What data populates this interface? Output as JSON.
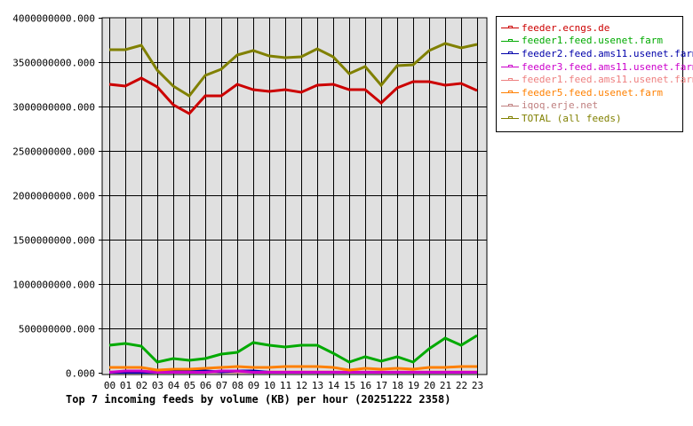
{
  "chart_data": {
    "type": "line",
    "title": "Top 7 incoming feeds by volume (KB) per hour (20251222 2358)",
    "xlabel": "",
    "ylabel": "",
    "ylim": [
      0,
      4000000000
    ],
    "yticks": [
      "0.000",
      "500000000.000",
      "1000000000.000",
      "1500000000.000",
      "2000000000.000",
      "2500000000.000",
      "3000000000.000",
      "3500000000.000",
      "4000000000.000"
    ],
    "categories": [
      "00",
      "01",
      "02",
      "03",
      "04",
      "05",
      "06",
      "07",
      "08",
      "09",
      "10",
      "11",
      "12",
      "13",
      "14",
      "15",
      "16",
      "17",
      "18",
      "19",
      "20",
      "21",
      "22",
      "23"
    ],
    "grid": true,
    "legend_position": "right",
    "series": [
      {
        "name": "feeder.ecngs.de",
        "color": "#cc0000",
        "values": [
          3250000000,
          3230000000,
          3320000000,
          3220000000,
          3020000000,
          2920000000,
          3120000000,
          3120000000,
          3250000000,
          3190000000,
          3170000000,
          3190000000,
          3160000000,
          3240000000,
          3250000000,
          3190000000,
          3190000000,
          3040000000,
          3210000000,
          3280000000,
          3280000000,
          3240000000,
          3260000000,
          3180000000
        ]
      },
      {
        "name": "feeder1.feed.usenet.farm",
        "color": "#00aa00",
        "values": [
          310000000,
          330000000,
          300000000,
          120000000,
          160000000,
          140000000,
          160000000,
          210000000,
          230000000,
          340000000,
          310000000,
          290000000,
          310000000,
          310000000,
          220000000,
          120000000,
          180000000,
          130000000,
          180000000,
          120000000,
          270000000,
          390000000,
          310000000,
          420000000
        ]
      },
      {
        "name": "feeder2.feed.ams11.usenet.farm",
        "color": "#0000aa",
        "values": [
          5000000,
          5000000,
          5000000,
          5000000,
          10000000,
          20000000,
          20000000,
          10000000,
          20000000,
          20000000,
          5000000,
          5000000,
          5000000,
          5000000,
          5000000,
          5000000,
          5000000,
          5000000,
          5000000,
          5000000,
          5000000,
          5000000,
          5000000,
          5000000
        ]
      },
      {
        "name": "feeder3.feed.ams11.usenet.farm",
        "color": "#cc00cc",
        "values": [
          5000000,
          20000000,
          20000000,
          5000000,
          5000000,
          5000000,
          5000000,
          20000000,
          20000000,
          5000000,
          5000000,
          5000000,
          5000000,
          5000000,
          5000000,
          5000000,
          5000000,
          5000000,
          5000000,
          5000000,
          5000000,
          5000000,
          5000000,
          5000000
        ]
      },
      {
        "name": "feeder1.feed.ams11.usenet.farm",
        "color": "#ee8080",
        "values": [
          10000000,
          10000000,
          10000000,
          10000000,
          10000000,
          10000000,
          10000000,
          10000000,
          10000000,
          10000000,
          10000000,
          10000000,
          10000000,
          10000000,
          10000000,
          10000000,
          10000000,
          10000000,
          10000000,
          10000000,
          10000000,
          10000000,
          10000000,
          10000000
        ]
      },
      {
        "name": "feeder5.feed.usenet.farm",
        "color": "#ff8000",
        "values": [
          60000000,
          60000000,
          60000000,
          30000000,
          40000000,
          40000000,
          50000000,
          60000000,
          70000000,
          60000000,
          60000000,
          70000000,
          70000000,
          70000000,
          60000000,
          30000000,
          50000000,
          40000000,
          50000000,
          40000000,
          60000000,
          60000000,
          70000000,
          70000000
        ]
      },
      {
        "name": "iqoq.erje.net",
        "color": "#c08080",
        "values": [
          8000000,
          8000000,
          8000000,
          8000000,
          8000000,
          8000000,
          8000000,
          8000000,
          8000000,
          8000000,
          8000000,
          8000000,
          8000000,
          8000000,
          8000000,
          8000000,
          8000000,
          8000000,
          8000000,
          8000000,
          8000000,
          8000000,
          8000000,
          8000000
        ]
      },
      {
        "name": "TOTAL (all feeds)",
        "color": "#808000",
        "values": [
          3640000000,
          3640000000,
          3690000000,
          3410000000,
          3230000000,
          3120000000,
          3350000000,
          3420000000,
          3580000000,
          3630000000,
          3570000000,
          3550000000,
          3560000000,
          3650000000,
          3560000000,
          3370000000,
          3450000000,
          3240000000,
          3460000000,
          3470000000,
          3630000000,
          3710000000,
          3660000000,
          3700000000
        ]
      }
    ]
  },
  "chart": {
    "title": "Top 7 incoming feeds by volume (KB) per hour (20251222 2358)",
    "plot_background": "#e0e0e0"
  },
  "legend": {
    "items": [
      {
        "label": "feeder.ecngs.de",
        "color": "#cc0000"
      },
      {
        "label": "feeder1.feed.usenet.farm",
        "color": "#00aa00"
      },
      {
        "label": "feeder2.feed.ams11.usenet.farm",
        "color": "#0000aa"
      },
      {
        "label": "feeder3.feed.ams11.usenet.farm",
        "color": "#cc00cc"
      },
      {
        "label": "feeder1.feed.ams11.usenet.farm",
        "color": "#ee8080"
      },
      {
        "label": "feeder5.feed.usenet.farm",
        "color": "#ff8000"
      },
      {
        "label": "iqoq.erje.net",
        "color": "#c08080"
      },
      {
        "label": "TOTAL (all feeds)",
        "color": "#808000"
      }
    ]
  }
}
